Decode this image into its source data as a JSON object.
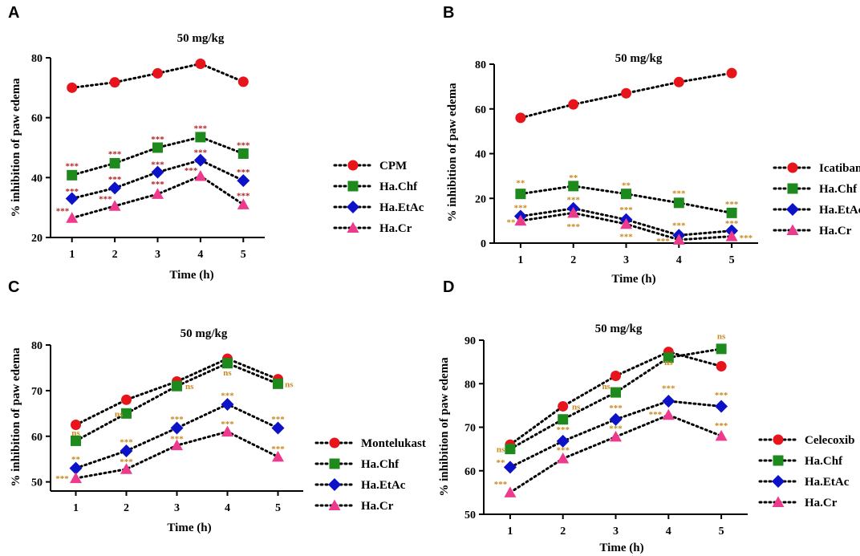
{
  "figure": {
    "colors": {
      "red": "#e8141b",
      "green": "#1e8a1e",
      "blue": "#0c12c8",
      "pink": "#ee3a8c",
      "ann_dark": "#b22222",
      "ann_gold": "#c8891d"
    }
  },
  "chart_data": [
    {
      "panel": "A",
      "type": "line",
      "title": "50 mg/kg",
      "xlabel": "Time (h)",
      "ylabel": "% inhibition of paw edema",
      "x": [
        1,
        2,
        3,
        4,
        5
      ],
      "xticks": [
        "1",
        "2",
        "3",
        "4",
        "5"
      ],
      "ylim": [
        20,
        80
      ],
      "yticks": [
        20,
        40,
        60,
        80
      ],
      "series": [
        {
          "name": "CPM",
          "marker": "circle",
          "color": "#e8141b",
          "values": [
            70,
            71.8,
            74.8,
            78,
            72
          ]
        },
        {
          "name": "Ha.Chf",
          "marker": "square",
          "color": "#1e8a1e",
          "values": [
            40.8,
            44.8,
            50,
            53.5,
            48
          ]
        },
        {
          "name": "Ha.EtAc",
          "marker": "diamond",
          "color": "#0c12c8",
          "values": [
            33,
            36.5,
            41.8,
            45.8,
            39
          ]
        },
        {
          "name": "Ha.Cr",
          "marker": "triangle",
          "color": "#ee3a8c",
          "values": [
            26.5,
            30.5,
            34.5,
            40.5,
            31
          ]
        }
      ],
      "annotations": [
        {
          "text": "***",
          "x": 1,
          "y": 44,
          "color": "ann_dark"
        },
        {
          "text": "***",
          "x": 2,
          "y": 48,
          "color": "ann_dark"
        },
        {
          "text": "***",
          "x": 3,
          "y": 53,
          "color": "ann_dark"
        },
        {
          "text": "***",
          "x": 4,
          "y": 56.5,
          "color": "ann_dark"
        },
        {
          "text": "***",
          "x": 5,
          "y": 51,
          "color": "ann_dark"
        },
        {
          "text": "***",
          "x": 1,
          "y": 35.5,
          "color": "ann_dark"
        },
        {
          "text": "***",
          "x": 2,
          "y": 39.5,
          "color": "ann_dark"
        },
        {
          "text": "***",
          "x": 3,
          "y": 44.5,
          "color": "ann_dark"
        },
        {
          "text": "***",
          "x": 4,
          "y": 48.5,
          "color": "ann_dark"
        },
        {
          "text": "***",
          "x": 5,
          "y": 42,
          "color": "ann_dark"
        },
        {
          "text": "***",
          "x": 0.78,
          "y": 29,
          "color": "ann_dark"
        },
        {
          "text": "***",
          "x": 1.78,
          "y": 33,
          "color": "ann_dark"
        },
        {
          "text": "***",
          "x": 3,
          "y": 38,
          "color": "ann_dark"
        },
        {
          "text": "***",
          "x": 3.78,
          "y": 42.5,
          "color": "ann_dark"
        },
        {
          "text": "***",
          "x": 5,
          "y": 34,
          "color": "ann_dark"
        }
      ]
    },
    {
      "panel": "B",
      "type": "line",
      "title": "50 mg/kg",
      "xlabel": "Time (h)",
      "ylabel": "% inhibition of paw edema",
      "x": [
        1,
        2,
        3,
        4,
        5
      ],
      "xticks": [
        "1",
        "2",
        "3",
        "4",
        "5"
      ],
      "ylim": [
        0,
        80
      ],
      "yticks": [
        0,
        20,
        40,
        60,
        80
      ],
      "series": [
        {
          "name": "Icatibant",
          "marker": "circle",
          "color": "#e8141b",
          "values": [
            56,
            62,
            67,
            72,
            76
          ]
        },
        {
          "name": "Ha.Chf",
          "marker": "square",
          "color": "#1e8a1e",
          "values": [
            22,
            25.5,
            22,
            18,
            13.5
          ]
        },
        {
          "name": "Ha.EtAc",
          "marker": "diamond",
          "color": "#0c12c8",
          "values": [
            12,
            15.5,
            10.5,
            3.5,
            5.5
          ]
        },
        {
          "name": "Ha.Cr",
          "marker": "triangle",
          "color": "#ee3a8c",
          "values": [
            10,
            13.5,
            8.5,
            1.5,
            3
          ]
        }
      ],
      "annotations": [
        {
          "text": "**",
          "x": 1,
          "y": 27,
          "color": "ann_gold"
        },
        {
          "text": "**",
          "x": 2,
          "y": 29.5,
          "color": "ann_gold"
        },
        {
          "text": "**",
          "x": 3,
          "y": 26,
          "color": "ann_gold"
        },
        {
          "text": "***",
          "x": 4,
          "y": 22.5,
          "color": "ann_gold"
        },
        {
          "text": "***",
          "x": 5,
          "y": 17.5,
          "color": "ann_gold"
        },
        {
          "text": "***",
          "x": 1,
          "y": 16,
          "color": "ann_gold"
        },
        {
          "text": "***",
          "x": 2,
          "y": 19.5,
          "color": "ann_gold"
        },
        {
          "text": "***",
          "x": 3,
          "y": 15,
          "color": "ann_gold"
        },
        {
          "text": "***",
          "x": 4,
          "y": 8,
          "color": "ann_gold"
        },
        {
          "text": "***",
          "x": 5,
          "y": 9,
          "color": "ann_gold"
        },
        {
          "text": "**",
          "x": 0.82,
          "y": 9.5,
          "color": "ann_gold"
        },
        {
          "text": "***",
          "x": 2,
          "y": 7.5,
          "color": "ann_gold"
        },
        {
          "text": "***",
          "x": 3,
          "y": 3,
          "color": "ann_gold"
        },
        {
          "text": "***",
          "x": 3.7,
          "y": 1,
          "color": "ann_gold"
        },
        {
          "text": "***",
          "x": 5.27,
          "y": 2.5,
          "color": "ann_gold"
        }
      ]
    },
    {
      "panel": "C",
      "type": "line",
      "title": "50 mg/kg",
      "xlabel": "Time (h)",
      "ylabel": "% inhibition of paw edema",
      "x": [
        1,
        2,
        3,
        4,
        5
      ],
      "xticks": [
        "1",
        "2",
        "3",
        "4",
        "5"
      ],
      "ylim": [
        48,
        80
      ],
      "yticks": [
        50,
        60,
        70,
        80
      ],
      "series": [
        {
          "name": "Montelukast",
          "marker": "circle",
          "color": "#e8141b",
          "values": [
            62.5,
            68,
            72,
            77,
            72.5
          ]
        },
        {
          "name": "Ha.Chf",
          "marker": "square",
          "color": "#1e8a1e",
          "values": [
            59,
            65,
            71,
            76,
            71.5
          ]
        },
        {
          "name": "Ha.EtAc",
          "marker": "diamond",
          "color": "#0c12c8",
          "values": [
            53,
            56.8,
            61.8,
            67,
            61.8
          ]
        },
        {
          "name": "Ha.Cr",
          "marker": "triangle",
          "color": "#ee3a8c",
          "values": [
            50.8,
            52.8,
            58,
            61,
            55.5
          ]
        }
      ],
      "annotations": [
        {
          "text": "ns",
          "x": 1,
          "y": 60.8,
          "color": "ann_gold"
        },
        {
          "text": "ns",
          "x": 1.85,
          "y": 65,
          "color": "ann_gold"
        },
        {
          "text": "ns",
          "x": 3.25,
          "y": 71,
          "color": "ann_gold"
        },
        {
          "text": "ns",
          "x": 4,
          "y": 74,
          "color": "ann_gold"
        },
        {
          "text": "ns",
          "x": 5.22,
          "y": 71.5,
          "color": "ann_gold"
        },
        {
          "text": "**",
          "x": 1,
          "y": 55,
          "color": "ann_gold"
        },
        {
          "text": "***",
          "x": 2,
          "y": 58.8,
          "color": "ann_gold"
        },
        {
          "text": "***",
          "x": 3,
          "y": 63.8,
          "color": "ann_gold"
        },
        {
          "text": "***",
          "x": 4,
          "y": 69,
          "color": "ann_gold"
        },
        {
          "text": "***",
          "x": 5,
          "y": 63.8,
          "color": "ann_gold"
        },
        {
          "text": "***",
          "x": 0.73,
          "y": 50.8,
          "color": "ann_gold"
        },
        {
          "text": "***",
          "x": 2,
          "y": 54.5,
          "color": "ann_gold"
        },
        {
          "text": "***",
          "x": 3,
          "y": 59.5,
          "color": "ann_gold"
        },
        {
          "text": "***",
          "x": 4,
          "y": 62.8,
          "color": "ann_gold"
        },
        {
          "text": "***",
          "x": 5,
          "y": 57.3,
          "color": "ann_gold"
        }
      ]
    },
    {
      "panel": "D",
      "type": "line",
      "title": "50 mg/kg",
      "xlabel": "Time (h)",
      "ylabel": "% inhibition of paw edema",
      "x": [
        1,
        2,
        3,
        4,
        5
      ],
      "xticks": [
        "1",
        "2",
        "3",
        "4",
        "5"
      ],
      "ylim": [
        50,
        90
      ],
      "yticks": [
        50,
        60,
        70,
        80,
        90
      ],
      "series": [
        {
          "name": "Celecoxib",
          "marker": "circle",
          "color": "#e8141b",
          "values": [
            66,
            74.8,
            81.8,
            87.3,
            84
          ]
        },
        {
          "name": "Ha.Chf",
          "marker": "square",
          "color": "#1e8a1e",
          "values": [
            65,
            71.8,
            78,
            86,
            88
          ]
        },
        {
          "name": "Ha.EtAc",
          "marker": "diamond",
          "color": "#0c12c8",
          "values": [
            60.8,
            66.8,
            71.8,
            76,
            74.8
          ]
        },
        {
          "name": "Ha.Cr",
          "marker": "triangle",
          "color": "#ee3a8c",
          "values": [
            55,
            62.8,
            67.8,
            72.8,
            68
          ]
        }
      ],
      "annotations": [
        {
          "text": "ns",
          "x": 0.82,
          "y": 65,
          "color": "ann_gold"
        },
        {
          "text": "ns",
          "x": 2.25,
          "y": 74.8,
          "color": "ann_gold"
        },
        {
          "text": "ns",
          "x": 2.82,
          "y": 79.5,
          "color": "ann_gold"
        },
        {
          "text": "ns",
          "x": 4,
          "y": 85,
          "color": "ann_gold"
        },
        {
          "text": "ns",
          "x": 5,
          "y": 91,
          "color": "ann_gold"
        },
        {
          "text": "**",
          "x": 0.82,
          "y": 62,
          "color": "ann_gold"
        },
        {
          "text": "***",
          "x": 2,
          "y": 69.5,
          "color": "ann_gold"
        },
        {
          "text": "***",
          "x": 3,
          "y": 74.5,
          "color": "ann_gold"
        },
        {
          "text": "***",
          "x": 4,
          "y": 79,
          "color": "ann_gold"
        },
        {
          "text": "***",
          "x": 5,
          "y": 77.5,
          "color": "ann_gold"
        },
        {
          "text": "***",
          "x": 0.82,
          "y": 57,
          "color": "ann_gold"
        },
        {
          "text": "***",
          "x": 2,
          "y": 64.8,
          "color": "ann_gold"
        },
        {
          "text": "***",
          "x": 3,
          "y": 69.8,
          "color": "ann_gold"
        },
        {
          "text": "***",
          "x": 3.75,
          "y": 73,
          "color": "ann_gold"
        },
        {
          "text": "***",
          "x": 5,
          "y": 70.5,
          "color": "ann_gold"
        }
      ]
    }
  ]
}
